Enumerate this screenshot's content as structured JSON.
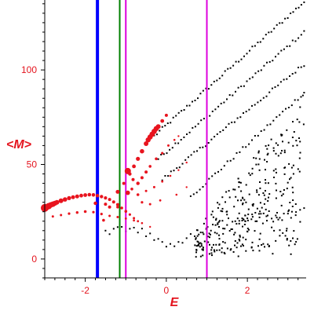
{
  "chart_data": {
    "type": "scatter",
    "xlabel": "E",
    "ylabel": "<M>",
    "xlim": [
      -3.0,
      3.45
    ],
    "ylim": [
      -10,
      137
    ],
    "xticks": [
      -2,
      0,
      2
    ],
    "yticks": [
      0,
      50,
      100
    ],
    "xtick_labels": [
      "-2",
      "0",
      "2"
    ],
    "ytick_labels": [
      "0",
      "50",
      "100"
    ],
    "grid": false,
    "colors": {
      "axis": "#000000",
      "labels": "#e4141e",
      "black_points": "#000000",
      "red_points": "#e8141e"
    },
    "vertical_lines": [
      {
        "x": -1.7,
        "color": "#0000ff",
        "width": "thick"
      },
      {
        "x": -1.15,
        "color": "#008000",
        "width": "thin"
      },
      {
        "x": -1.0,
        "color": "#dd00dd",
        "width": "thin"
      },
      {
        "x": 1.0,
        "color": "#dd00dd",
        "width": "thin"
      }
    ],
    "series": [
      {
        "color": "#000000",
        "marker": "dot",
        "bands": [
          {
            "x0": -0.3,
            "y0": 65,
            "x1": 3.4,
            "y1": 136,
            "n": 56
          },
          {
            "x0": -0.2,
            "y0": 53,
            "x1": 3.4,
            "y1": 120,
            "n": 52
          },
          {
            "x0": -0.1,
            "y0": 42,
            "x1": 3.4,
            "y1": 103,
            "n": 50
          },
          {
            "x0": 0.6,
            "y0": 33,
            "x1": 3.4,
            "y1": 88,
            "n": 38
          }
        ],
        "scatter_cloud": {
          "x_min": 0.7,
          "x_max": 3.4,
          "y_min": 0,
          "y_max": 85,
          "n": 320
        },
        "low_band": [
          [
            -1.5,
            15
          ],
          [
            -1.3,
            16
          ],
          [
            -1.1,
            17
          ],
          [
            -0.9,
            16
          ],
          [
            -0.7,
            14
          ],
          [
            -0.5,
            12
          ],
          [
            -0.3,
            10
          ],
          [
            -0.1,
            9
          ],
          [
            0.1,
            8
          ],
          [
            0.3,
            9
          ],
          [
            0.5,
            11
          ],
          [
            0.7,
            12
          ],
          [
            0.9,
            14
          ],
          [
            1.1,
            15
          ],
          [
            1.3,
            17
          ],
          [
            1.5,
            18
          ],
          [
            1.7,
            20
          ],
          [
            1.9,
            21
          ],
          [
            2.1,
            21
          ],
          [
            2.3,
            22
          ],
          [
            2.5,
            23
          ],
          [
            2.7,
            23
          ],
          [
            2.9,
            24
          ],
          [
            3.1,
            25
          ],
          [
            3.3,
            26
          ]
        ]
      },
      {
        "color": "#e8141e",
        "marker": "circle",
        "points": [
          [
            -3.0,
            27,
            5
          ],
          [
            -2.95,
            27.5,
            4
          ],
          [
            -2.9,
            28,
            4
          ],
          [
            -2.85,
            28.6,
            3.5
          ],
          [
            -2.8,
            29,
            3.5
          ],
          [
            -2.75,
            29.5,
            3.2
          ],
          [
            -2.7,
            30,
            3
          ],
          [
            -2.6,
            30.8,
            3
          ],
          [
            -2.5,
            31.5,
            2.8
          ],
          [
            -2.4,
            32.2,
            2.6
          ],
          [
            -2.3,
            32.7,
            2.5
          ],
          [
            -2.2,
            33.1,
            2.5
          ],
          [
            -2.1,
            33.5,
            2.4
          ],
          [
            -2.0,
            33.8,
            2.4
          ],
          [
            -1.9,
            34.0,
            2.3
          ],
          [
            -1.8,
            33.9,
            2.3
          ],
          [
            -1.7,
            33.5,
            2.2
          ],
          [
            -1.6,
            33.0,
            2.2
          ],
          [
            -1.5,
            32.3,
            2.1
          ],
          [
            -1.4,
            31.5,
            2
          ],
          [
            -1.3,
            30.2,
            2
          ],
          [
            -1.2,
            28.8,
            2
          ],
          [
            -1.1,
            27.0,
            1.8
          ],
          [
            -1.0,
            25.2,
            1.8
          ],
          [
            -0.9,
            23.5,
            1.6
          ],
          [
            -0.8,
            21.6,
            1.5
          ],
          [
            -0.7,
            20.0,
            1.4
          ],
          [
            -2.8,
            22.5,
            1.5
          ],
          [
            -2.6,
            23.2,
            1.5
          ],
          [
            -2.4,
            24.0,
            1.6
          ],
          [
            -2.2,
            24.6,
            1.7
          ],
          [
            -2.0,
            25.1,
            1.8
          ],
          [
            -1.8,
            24.8,
            1.6
          ],
          [
            -1.6,
            23.8,
            1.6
          ],
          [
            -1.4,
            22.8,
            1.5
          ],
          [
            -1.2,
            22.2,
            1.5
          ],
          [
            -1.0,
            21.4,
            1.4
          ],
          [
            -0.8,
            20.4,
            1.4
          ],
          [
            -0.6,
            19.0,
            1.3
          ],
          [
            -0.4,
            17.0,
            1.2
          ],
          [
            -1.75,
            29.5,
            2.2
          ],
          [
            -1.5,
            29.0,
            2
          ],
          [
            -1.4,
            27.5,
            2
          ],
          [
            -1.05,
            40,
            2
          ],
          [
            -0.9,
            45,
            2.2
          ],
          [
            -0.8,
            49,
            2.4
          ],
          [
            -0.7,
            53,
            2.6
          ],
          [
            -0.6,
            57,
            2.8
          ],
          [
            -0.5,
            61,
            3
          ],
          [
            -0.45,
            63,
            3.2
          ],
          [
            -0.4,
            64.5,
            3.3
          ],
          [
            -0.35,
            66,
            3.4
          ],
          [
            -0.3,
            67.5,
            3.4
          ],
          [
            -0.25,
            69,
            3.3
          ],
          [
            -0.2,
            70,
            3
          ],
          [
            -0.1,
            73,
            2.4
          ],
          [
            0.0,
            76,
            2
          ],
          [
            -1.2,
            35.5,
            2.5
          ],
          [
            -0.95,
            46.5,
            4
          ],
          [
            -0.82,
            42,
            2
          ],
          [
            -0.7,
            40,
            2.2
          ],
          [
            -0.6,
            43,
            2
          ],
          [
            -0.5,
            46,
            2
          ],
          [
            -0.4,
            49,
            1.8
          ],
          [
            -0.25,
            53,
            1.8
          ],
          [
            -0.1,
            56,
            1.6
          ],
          [
            0.05,
            60,
            1.5
          ],
          [
            0.2,
            63,
            1.3
          ],
          [
            0.3,
            65,
            1.2
          ],
          [
            -0.85,
            37,
            1.8
          ],
          [
            -0.7,
            34,
            1.8
          ],
          [
            -0.5,
            36,
            1.5
          ],
          [
            -0.3,
            38,
            1.5
          ],
          [
            -0.1,
            41,
            1.4
          ],
          [
            0.1,
            44,
            1.3
          ],
          [
            0.3,
            47,
            1.2
          ],
          [
            0.5,
            51,
            1.2
          ],
          [
            -0.6,
            30,
            1.6
          ],
          [
            -0.4,
            29,
            1.5
          ],
          [
            -0.15,
            31,
            1.4
          ],
          [
            0.25,
            34,
            1.3
          ],
          [
            0.5,
            38,
            1.2
          ],
          [
            -1.55,
            20.5,
            1.8
          ],
          [
            -1.2,
            27.5,
            1.8
          ],
          [
            -0.95,
            35,
            2.8
          ]
        ]
      }
    ]
  }
}
